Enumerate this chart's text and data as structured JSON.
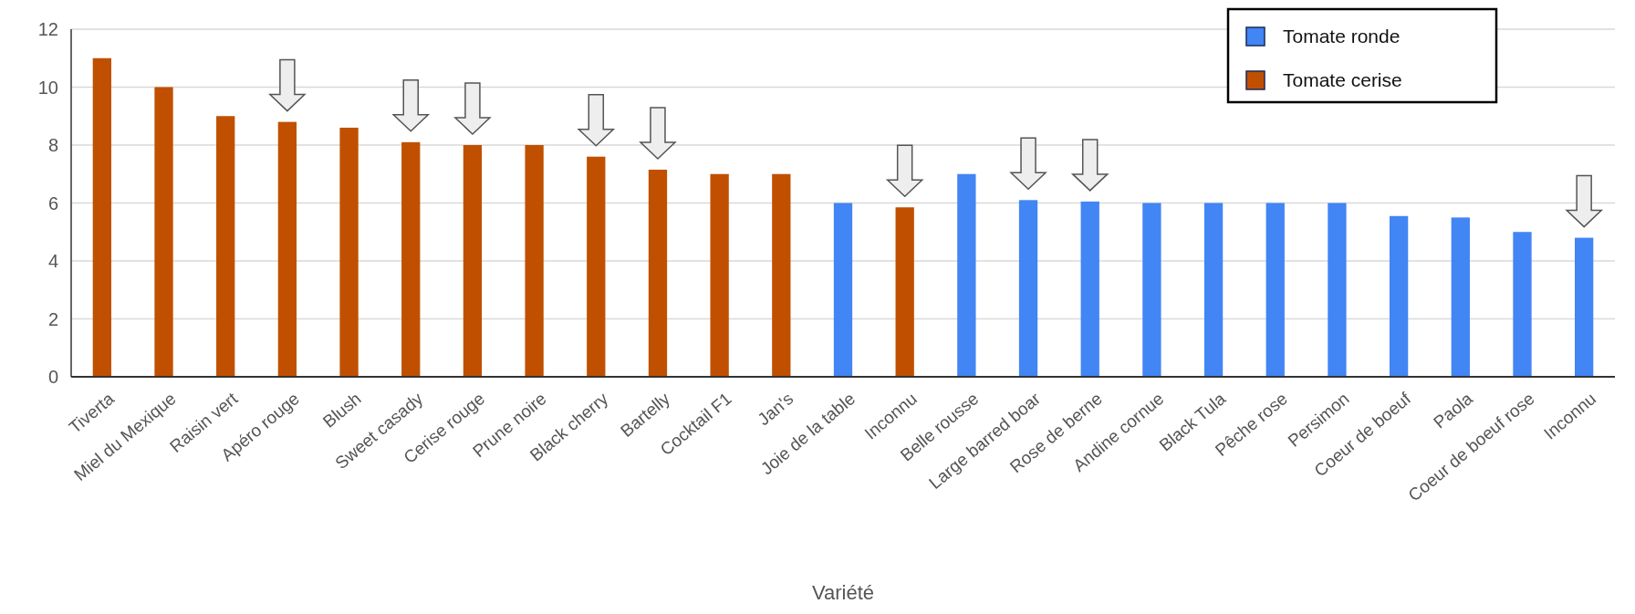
{
  "chart_data": {
    "type": "bar",
    "xlabel": "Variété",
    "categories": [
      "Tiverta",
      "Miel du Mexique",
      "Raisin vert",
      "Apéro rouge",
      "Blush",
      "Sweet casady",
      "Cerise rouge",
      "Prune noire",
      "Black cherry",
      "Bartelly",
      "Cocktail F1",
      "Jan's",
      "Joie de la table",
      "Inconnu",
      "Belle rousse",
      "Large barred boar",
      "Rose de berne",
      "Andine cornue",
      "Black Tula",
      "Pêche rose",
      "Persimon",
      "Coeur de boeuf",
      "Paola",
      "Coeur de boeuf rose",
      "Inconnu"
    ],
    "series": [
      {
        "name": "Tomate ronde",
        "color": "#4285f4",
        "values": [
          null,
          null,
          null,
          null,
          null,
          null,
          null,
          null,
          null,
          null,
          null,
          null,
          6,
          null,
          7,
          6.1,
          6.05,
          6,
          6,
          6,
          6,
          5.55,
          5.5,
          5,
          4.8
        ]
      },
      {
        "name": "Tomate cerise",
        "color": "#c05000",
        "values": [
          11,
          10,
          9,
          8.8,
          8.6,
          8.1,
          8,
          8,
          7.6,
          7.15,
          7,
          7,
          null,
          5.85,
          null,
          null,
          null,
          null,
          null,
          null,
          null,
          null,
          null,
          null,
          null
        ]
      }
    ],
    "ylim": [
      0,
      12
    ],
    "yticks": [
      0,
      2,
      4,
      6,
      8,
      10,
      12
    ],
    "grid": "y",
    "legend": "top right"
  }
}
